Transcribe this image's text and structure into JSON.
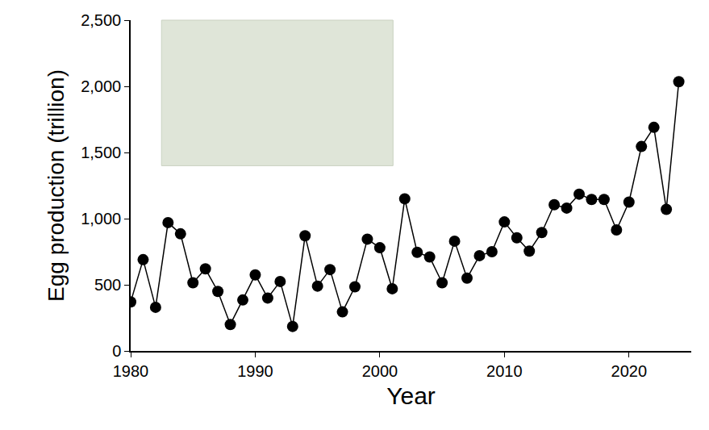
{
  "chart_data": {
    "type": "line",
    "x_label": "Year",
    "y_label": "Egg production (trillion)",
    "x": [
      1980,
      1981,
      1982,
      1983,
      1984,
      1985,
      1986,
      1987,
      1988,
      1989,
      1990,
      1991,
      1992,
      1993,
      1994,
      1995,
      1996,
      1997,
      1998,
      1999,
      2000,
      2001,
      2002,
      2003,
      2004,
      2005,
      2006,
      2007,
      2008,
      2009,
      2010,
      2011,
      2012,
      2013,
      2014,
      2015,
      2016,
      2017,
      2018,
      2019,
      2020,
      2021,
      2022,
      2023,
      2024
    ],
    "values": [
      370,
      690,
      330,
      970,
      885,
      515,
      620,
      450,
      200,
      385,
      575,
      400,
      525,
      185,
      870,
      490,
      615,
      295,
      485,
      845,
      780,
      470,
      1150,
      745,
      710,
      515,
      830,
      550,
      720,
      750,
      975,
      855,
      755,
      895,
      1105,
      1080,
      1185,
      1145,
      1145,
      915,
      1125,
      1545,
      1690,
      1070,
      2035
    ],
    "color": "#000000",
    "marker": "circle",
    "line_style": "solid",
    "xlim": [
      1980,
      2025
    ],
    "xticks": [
      1980,
      1990,
      2000,
      2010,
      2020
    ],
    "ylim": [
      0,
      2500
    ],
    "yticks": [
      0,
      {
        "value": 500,
        "label": "500"
      },
      {
        "value": 1000,
        "label": "1,000"
      },
      {
        "value": 1500,
        "label": "1,500"
      },
      {
        "value": 2000,
        "label": "2,000"
      },
      {
        "value": 2500,
        "label": "2,500"
      }
    ],
    "grid": false
  }
}
